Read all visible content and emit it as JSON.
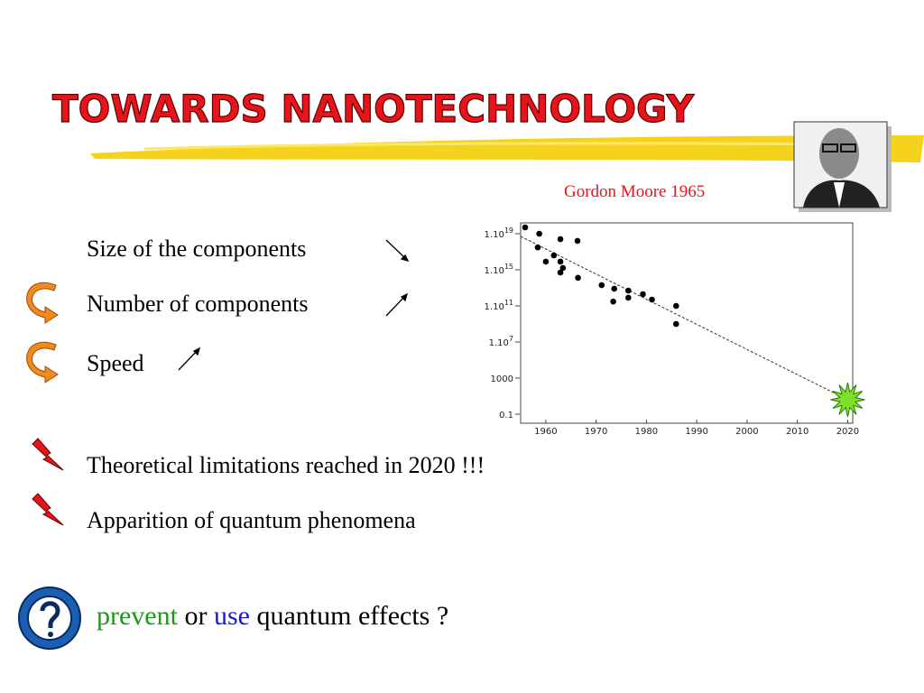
{
  "header": {
    "title": "TOWARDS NANOTECHNOLOGY",
    "caption": "Gordon Moore 1965"
  },
  "bullets": [
    "Size of the components",
    "Number of components",
    "Speed",
    "Theoretical limitations reached in 2020 !!!",
    "Apparition of quantum  phenomena"
  ],
  "question": {
    "word1": "prevent",
    "word2": "or",
    "word3": "use",
    "rest": "quantum effects ?"
  },
  "chart_data": {
    "type": "scatter",
    "log_y": true,
    "xlim": [
      1955,
      2021
    ],
    "ylim": [
      0.01,
      1e+20
    ],
    "xticks": [
      1960,
      1970,
      1980,
      1990,
      2000,
      2010,
      2020
    ],
    "yticks": [
      {
        "value": 0.1,
        "label": "0.1"
      },
      1000,
      {
        "value": 10000000.0,
        "label": "1.10",
        "sup": "7"
      },
      {
        "value": 100000000000.0,
        "label": "1.10",
        "sup": "11"
      },
      {
        "value": 1000000000000000.0,
        "label": "1.10",
        "sup": "15"
      },
      {
        "value": 1e+19,
        "label": "1.10",
        "sup": "19"
      }
    ],
    "color": "#000000",
    "points": {
      "x": [
        1955.9,
        1958.7,
        1958.4,
        1960,
        1962.9,
        1966.3,
        1961.6,
        1962.9,
        1963.4,
        1962.9,
        1966.4,
        1971.1,
        1973.6,
        1973.4,
        1976.4,
        1976.4,
        1979.3,
        1981.1,
        1985.9,
        1985.9
      ],
      "values": [
        5e+19,
        1e+19,
        3e+17,
        8000000000000000.0,
        2.5e+18,
        1.6e+18,
        4e+16,
        8000000000000000.0,
        1600000000000000.0,
        500000000000000.0,
        130000000000000.0,
        20000000000000.0,
        8000000000000.0,
        300000000000.0,
        5000000000000.0,
        800000000000.0,
        2000000000000.0,
        500000000000.0,
        100000000000.0,
        1000000000.0
      ]
    },
    "trend": {
      "x": [
        1955,
        2020
      ],
      "values": [
        5e+18,
        4
      ]
    }
  }
}
